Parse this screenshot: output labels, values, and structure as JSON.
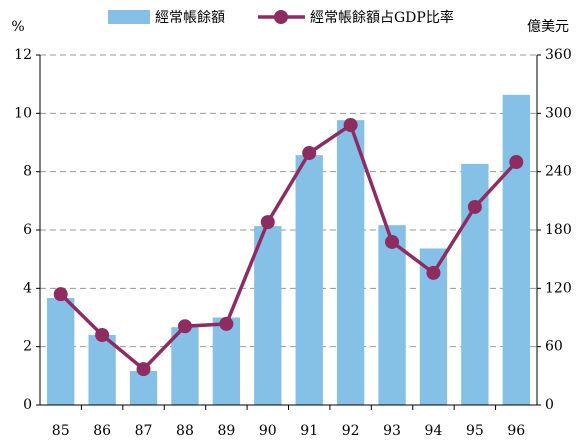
{
  "chart_data": {
    "type": "bar",
    "categories": [
      "85",
      "86",
      "87",
      "88",
      "89",
      "90",
      "91",
      "92",
      "93",
      "94",
      "95",
      "96"
    ],
    "series": [
      {
        "name": "經常帳餘額",
        "type": "bar",
        "axis": "y2",
        "color": "#85c1e6",
        "values": [
          110,
          72,
          35,
          80,
          90,
          184,
          257,
          293,
          185,
          161,
          248,
          319
        ]
      },
      {
        "name": "經常帳餘額占GDP比率",
        "type": "line",
        "axis": "y",
        "color": "#8e2c62",
        "values": [
          3.8,
          2.4,
          1.23,
          2.7,
          2.78,
          6.27,
          8.64,
          9.6,
          5.59,
          4.53,
          6.79,
          8.33
        ]
      }
    ],
    "ylabel": "%",
    "y2label": "億美元",
    "ylim": [
      0,
      12
    ],
    "yticks": [
      0,
      2,
      4,
      6,
      8,
      10,
      12
    ],
    "y2lim": [
      0,
      360
    ],
    "y2ticks": [
      0,
      60,
      120,
      180,
      240,
      300,
      360
    ],
    "grid": true,
    "legend": "top"
  }
}
